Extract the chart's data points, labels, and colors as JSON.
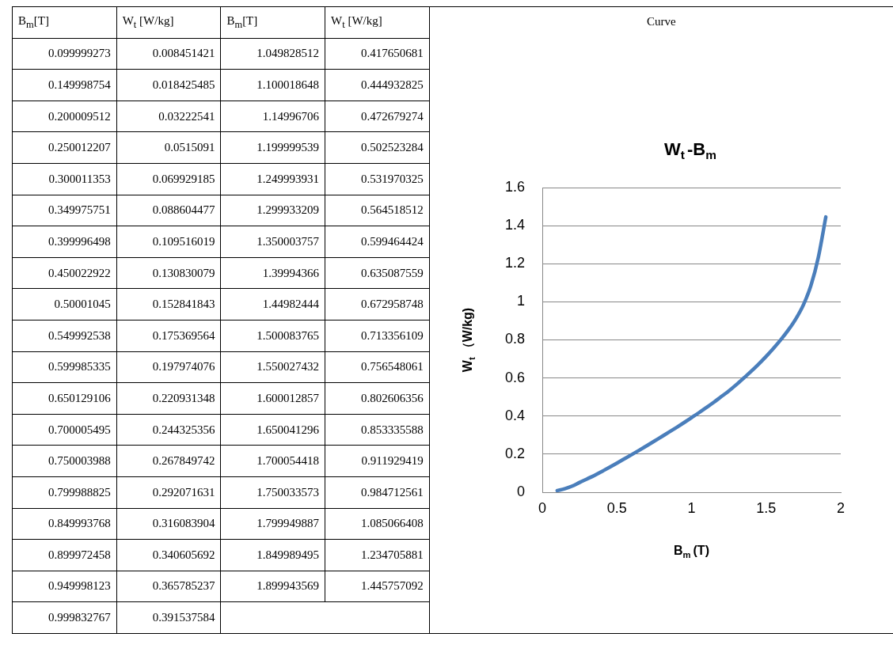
{
  "chart_data": [
    {
      "type": "other",
      "annotations": [
        "B$_{m}$[T]",
        "W$_{t}$ [W/kg]",
        "B$_{m}$[T]",
        "W$_{t}$ [W/kg]",
        "Curve",
        "0.099999273",
        "0.008451421",
        "1.049828512",
        "0.417650681",
        "0.149998754",
        "0.018425485",
        "1.100018648",
        "0.444932825",
        "0.200009512",
        "0.03222541",
        "1.14996706",
        "0.472679274",
        "0.250012207",
        "0.0515091",
        "1.199999539",
        "0.502523284",
        "0.300011353",
        "0.069929185",
        "1.249993931",
        "0.531970325",
        "0.349975751",
        "0.088604477",
        "1.299933209",
        "0.564518512",
        "0.399996498",
        "0.109516019",
        "1.350003757",
        "0.599464424",
        "0.450022922",
        "0.130830079",
        "1.39994366",
        "0.635087559",
        "0.50001045",
        "0.152841843",
        "1.44982444",
        "0.672958748",
        "0.549992538",
        "0.175369564",
        "1.500083765",
        "0.713356109",
        "0.599985335",
        "0.197974076",
        "1.550027432",
        "0.756548061",
        "0.650129106",
        "0.220931348",
        "1.600012857",
        "0.802606356",
        "0.700005495",
        "0.244325356",
        "1.650041296",
        "0.853335588",
        "0.750003988",
        "0.267849742",
        "1.700054418",
        "0.911929419",
        "0.799988825",
        "0.292071631",
        "1.750033573",
        "0.984712561",
        "0.849993768",
        "0.316083904",
        "1.799949887",
        "1.085066408",
        "0.899972458",
        "0.340605692",
        "1.849989495",
        "1.234705881",
        "0.949998123",
        "0.365785237",
        "1.899943569",
        "1.445757092",
        "0.999832767",
        "0.391537584"
      ]
    },
    {
      "type": "line",
      "title": "W$_{t}$-B$_{m}$",
      "xlabel": "B$_{m}$(T)",
      "ylabel": "W$_{t}$（W/kg)",
      "x": [
        0.099999273,
        0.149998754,
        0.200009512,
        0.250012207,
        0.300011353,
        0.349975751,
        0.399996498,
        0.450022922,
        0.50001045,
        0.549992538,
        0.599985335,
        0.650129106,
        0.700005495,
        0.750003988,
        0.799988825,
        0.849993768,
        0.899972458,
        0.949998123,
        0.999832767,
        1.049828512,
        1.100018648,
        1.14996706,
        1.199999539,
        1.249993931,
        1.299933209,
        1.350003757,
        1.39994366,
        1.44982444,
        1.500083765,
        1.550027432,
        1.600012857,
        1.650041296,
        1.700054418,
        1.750033573,
        1.799949887,
        1.849989495,
        1.899943569
      ],
      "series": [
        {
          "color": "#4a7ebb",
          "values": [
            0.008451421,
            0.018425485,
            0.03222541,
            0.0515091,
            0.069929185,
            0.088604477,
            0.109516019,
            0.130830079,
            0.152841843,
            0.175369564,
            0.197974076,
            0.220931348,
            0.244325356,
            0.267849742,
            0.292071631,
            0.316083904,
            0.340605692,
            0.365785237,
            0.391537584,
            0.417650681,
            0.444932825,
            0.472679274,
            0.502523284,
            0.531970325,
            0.564518512,
            0.599464424,
            0.635087559,
            0.672958748,
            0.713356109,
            0.756548061,
            0.802606356,
            0.853335588,
            0.911929419,
            0.984712561,
            1.085066408,
            1.234705881,
            1.445757092
          ]
        }
      ],
      "xlim": [
        0,
        2
      ],
      "xticks": [
        0,
        0.5,
        1,
        1.5,
        2
      ],
      "ylim": [
        0,
        1.6
      ],
      "yticks": [
        0,
        0.2,
        0.4,
        0.6,
        0.8,
        1,
        1.2,
        1.4,
        1.6
      ],
      "grid": "y",
      "legend": false,
      "marker": "none",
      "line_style": "solid"
    }
  ]
}
